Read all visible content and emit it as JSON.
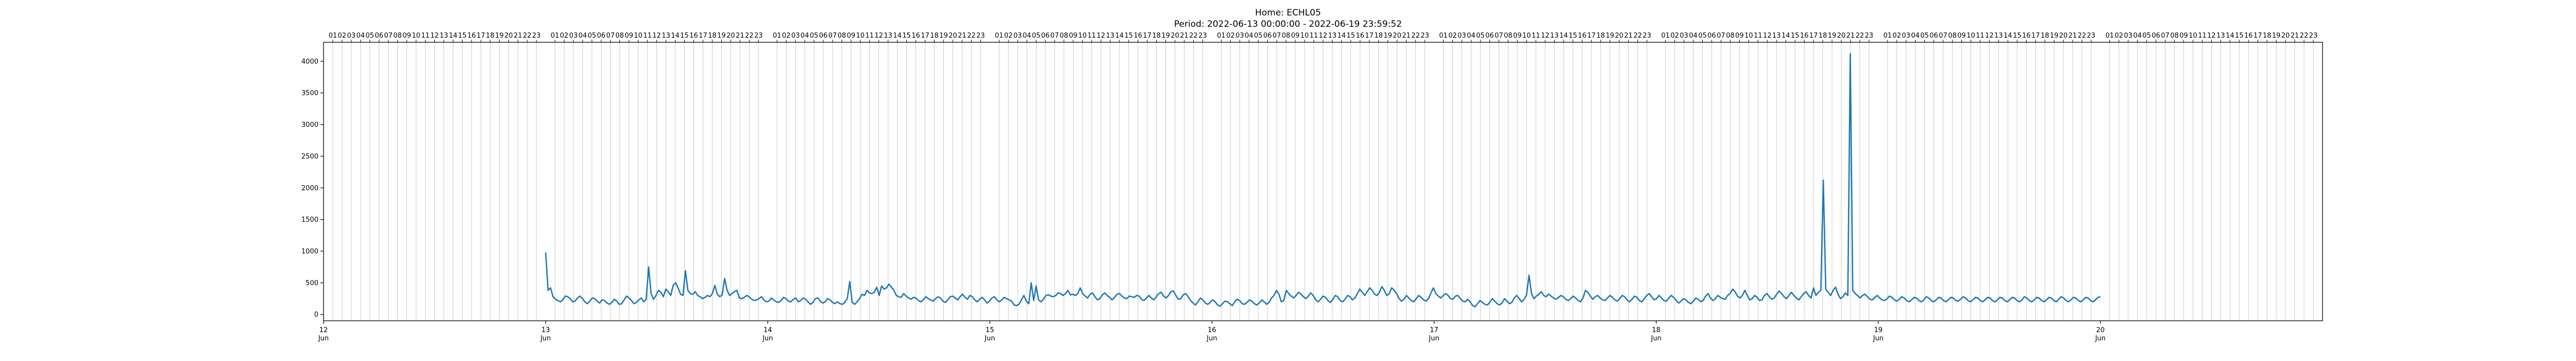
{
  "chart_data": {
    "type": "line",
    "title": "Home: ECHL05",
    "subtitle": "Period: 2022-06-13 00:00:00 - 2022-06-19 23:59:52",
    "xlabel": "",
    "ylabel": "",
    "ylim": [
      -100,
      4300
    ],
    "y_ticks": [
      0,
      500,
      1000,
      1500,
      2000,
      2500,
      3000,
      3500,
      4000
    ],
    "x_ticks": [
      {
        "day": "12",
        "month": "Jun",
        "label": "12 Jun"
      },
      {
        "day": "13",
        "month": "Jun",
        "label": "13 Jun"
      },
      {
        "day": "14",
        "month": "Jun",
        "label": "14 Jun"
      },
      {
        "day": "15",
        "month": "Jun",
        "label": "15 Jun"
      },
      {
        "day": "16",
        "month": "Jun",
        "label": "16 Jun"
      },
      {
        "day": "17",
        "month": "Jun",
        "label": "17 Jun"
      },
      {
        "day": "18",
        "month": "Jun",
        "label": "18 Jun"
      },
      {
        "day": "19",
        "month": "Jun",
        "label": "19 Jun"
      },
      {
        "day": "20",
        "month": "Jun",
        "label": "20 Jun"
      }
    ],
    "top_hour_ticks": "16 17 18 19 20 21 22 23 [blank] 01 02 03 ... 23 repeated per day ... 01 02 03 04 05 06 07 08",
    "grid": "vertical hourly gridlines",
    "series": [
      {
        "color": "#1f77b4",
        "hourly_values": [
          980,
          380,
          420,
          280,
          240,
          220,
          200,
          230,
          290,
          280,
          250,
          200,
          210,
          260,
          290,
          250,
          200,
          170,
          210,
          260,
          250,
          210,
          180,
          230,
          220,
          180,
          160,
          190,
          240,
          210,
          160,
          170,
          230,
          290,
          260,
          220,
          170,
          190,
          230,
          260,
          200,
          240,
          750,
          330,
          240,
          300,
          380,
          350,
          280,
          400,
          360,
          300,
          460,
          500,
          420,
          320,
          300,
          690,
          380,
          330,
          320,
          360,
          300,
          280,
          250,
          270,
          300,
          280,
          330,
          460,
          320,
          280,
          310,
          570,
          380,
          300,
          330,
          360,
          380,
          260,
          250,
          270,
          300,
          280,
          240,
          220,
          230,
          250,
          280,
          230,
          200,
          210,
          260,
          230,
          200,
          190,
          220,
          270,
          250,
          210,
          200,
          240,
          260,
          200,
          220,
          260,
          240,
          200,
          160,
          190,
          250,
          260,
          210,
          180,
          200,
          250,
          230,
          190,
          170,
          200,
          170,
          160,
          190,
          250,
          520,
          190,
          160,
          200,
          250,
          320,
          300,
          380,
          340,
          330,
          350,
          430,
          300,
          450,
          400,
          420,
          480,
          430,
          380,
          300,
          280,
          270,
          330,
          290,
          260,
          240,
          270,
          260,
          220,
          200,
          230,
          280,
          250,
          230,
          210,
          250,
          280,
          260,
          210,
          190,
          230,
          280,
          290,
          260,
          230,
          280,
          320,
          270,
          240,
          300,
          280,
          230,
          200,
          240,
          270,
          230,
          180,
          210,
          260,
          280,
          230,
          200,
          230,
          270,
          250,
          230,
          210,
          150,
          140,
          160,
          230,
          300,
          210,
          170,
          500,
          220,
          450,
          230,
          200,
          240,
          300,
          310,
          290,
          280,
          300,
          340,
          330,
          300,
          330,
          380,
          310,
          320,
          300,
          330,
          420,
          330,
          290,
          260,
          320,
          340,
          280,
          230,
          250,
          310,
          340,
          300,
          270,
          230,
          270,
          320,
          330,
          290,
          260,
          250,
          290,
          280,
          270,
          300,
          290,
          240,
          220,
          260,
          300,
          260,
          230,
          280,
          330,
          350,
          290,
          260,
          300,
          360,
          370,
          300,
          240,
          250,
          310,
          330,
          280,
          220,
          180,
          150,
          200,
          260,
          230,
          180,
          160,
          190,
          230,
          200,
          150,
          130,
          170,
          210,
          200,
          170,
          140,
          200,
          240,
          220,
          170,
          160,
          190,
          230,
          210,
          170,
          150,
          180,
          230,
          200,
          160,
          190,
          260,
          300,
          380,
          320,
          200,
          220,
          380,
          330,
          290,
          260,
          300,
          350,
          320,
          280,
          250,
          290,
          340,
          300,
          230,
          200,
          240,
          290,
          270,
          220,
          190,
          240,
          300,
          280,
          220,
          200,
          240,
          300,
          280,
          230,
          260,
          330,
          400,
          350,
          300,
          360,
          420,
          380,
          320,
          300,
          350,
          440,
          380,
          300,
          330,
          420,
          380,
          330,
          250,
          210,
          240,
          300,
          260,
          220,
          200,
          250,
          300,
          270,
          230,
          210,
          250,
          340,
          420,
          330,
          290,
          260,
          300,
          330,
          300,
          250,
          240,
          290,
          300,
          250,
          210,
          200,
          240,
          200,
          140,
          120,
          170,
          220,
          190,
          160,
          150,
          190,
          250,
          210,
          170,
          150,
          180,
          250,
          210,
          170,
          190,
          260,
          300,
          250,
          200,
          240,
          310,
          620,
          330,
          250,
          290,
          320,
          360,
          300,
          280,
          320,
          290,
          260,
          240,
          270,
          300,
          280,
          240,
          220,
          250,
          290,
          260,
          220,
          200,
          260,
          380,
          350,
          290,
          240,
          280,
          300,
          260,
          230,
          220,
          260,
          300,
          270,
          230,
          210,
          250,
          300,
          280,
          230,
          200,
          240,
          290,
          270,
          220,
          200,
          250,
          300,
          330,
          280,
          230,
          250,
          300,
          260,
          220,
          210,
          260,
          300,
          270,
          220,
          180,
          210,
          250,
          230,
          190,
          170,
          210,
          260,
          240,
          200,
          220,
          290,
          330,
          260,
          220,
          250,
          300,
          270,
          250,
          240,
          300,
          330,
          400,
          360,
          290,
          260,
          300,
          380,
          300,
          230,
          250,
          300,
          270,
          220,
          230,
          300,
          330,
          280,
          240,
          260,
          320,
          370,
          330,
          280,
          250,
          300,
          350,
          300,
          260,
          230,
          280,
          330,
          360,
          300,
          260,
          420,
          300,
          350,
          380,
          2120,
          400,
          350,
          300,
          380,
          430,
          320,
          250,
          280,
          340,
          300,
          4120,
          380,
          330,
          300,
          260,
          300,
          320,
          280,
          240,
          230,
          270,
          300,
          260,
          230,
          220,
          250,
          290,
          270,
          230,
          210,
          240,
          280,
          260,
          220,
          200,
          230,
          270,
          260,
          220,
          200,
          230,
          280,
          260,
          220,
          200,
          230,
          270,
          260,
          220,
          200,
          230,
          270,
          260,
          220,
          210,
          240,
          280,
          260,
          220,
          200,
          230,
          270,
          260,
          220,
          200,
          230,
          270,
          260,
          220,
          200,
          230,
          270,
          260,
          220,
          200,
          230,
          270,
          260,
          220,
          200,
          230,
          280,
          260,
          220,
          200,
          230,
          270,
          260,
          220,
          200,
          230,
          270,
          260,
          220,
          200,
          240,
          280,
          260,
          220,
          200,
          230,
          270,
          260,
          220,
          200,
          230,
          270,
          260,
          220,
          200,
          230,
          270,
          280
        ]
      }
    ]
  }
}
